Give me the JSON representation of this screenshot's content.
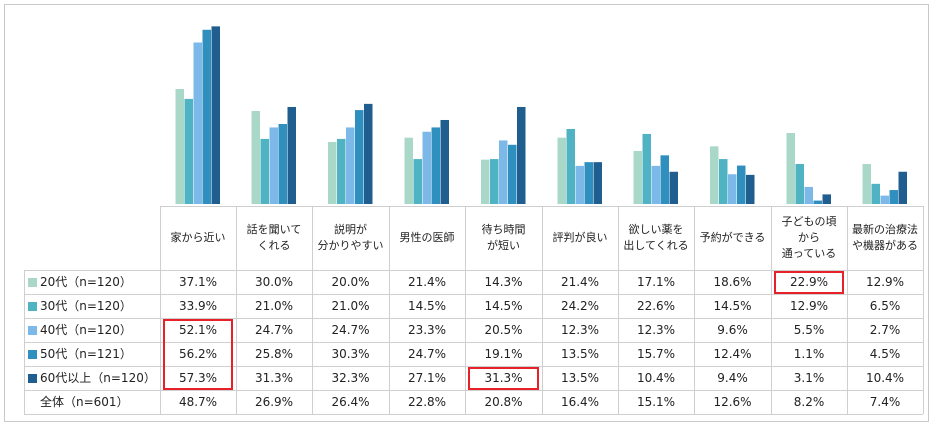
{
  "chart_data": {
    "type": "bar",
    "categories": [
      "家から近い",
      "話を聞いて\nくれる",
      "説明が\n分かりやすい",
      "男性の医師",
      "待ち時間\nが短い",
      "評判が良い",
      "欲しい薬を\n出してくれる",
      "予約ができる",
      "子どもの頃\nから\n通っている",
      "最新の治療法\nや機器がある"
    ],
    "series": [
      {
        "name": "20代（n=120）",
        "color": "#a9d8c8",
        "values": [
          "37.1%",
          "30.0%",
          "20.0%",
          "21.4%",
          "14.3%",
          "21.4%",
          "17.1%",
          "18.6%",
          "22.9%",
          "12.9%"
        ]
      },
      {
        "name": "30代（n=120）",
        "color": "#4fb3c3",
        "values": [
          "33.9%",
          "21.0%",
          "21.0%",
          "14.5%",
          "14.5%",
          "24.2%",
          "22.6%",
          "14.5%",
          "12.9%",
          "6.5%"
        ]
      },
      {
        "name": "40代（n=120）",
        "color": "#7db9e8",
        "values": [
          "52.1%",
          "24.7%",
          "24.7%",
          "23.3%",
          "20.5%",
          "12.3%",
          "12.3%",
          "9.6%",
          "5.5%",
          "2.7%"
        ]
      },
      {
        "name": "50代（n=121）",
        "color": "#2f8fbf",
        "values": [
          "56.2%",
          "25.8%",
          "30.3%",
          "24.7%",
          "19.1%",
          "13.5%",
          "15.7%",
          "12.4%",
          "1.1%",
          "4.5%"
        ]
      },
      {
        "name": "60代以上（n=120）",
        "color": "#1f5e8f",
        "values": [
          "57.3%",
          "31.3%",
          "32.3%",
          "27.1%",
          "31.3%",
          "13.5%",
          "10.4%",
          "9.4%",
          "3.1%",
          "10.4%"
        ]
      }
    ],
    "total": {
      "name": "全体（n=601）",
      "values": [
        "48.7%",
        "26.9%",
        "26.4%",
        "22.8%",
        "20.8%",
        "16.4%",
        "15.1%",
        "12.6%",
        "8.2%",
        "7.4%"
      ]
    },
    "highlights": [
      {
        "row": 0,
        "col": 8
      },
      {
        "row": 2,
        "col": 0
      },
      {
        "row": 3,
        "col": 0
      },
      {
        "row": 4,
        "col": 0
      },
      {
        "row": 4,
        "col": 4
      }
    ],
    "highlight_color": "#e8202a",
    "ylim": [
      0,
      60
    ]
  }
}
